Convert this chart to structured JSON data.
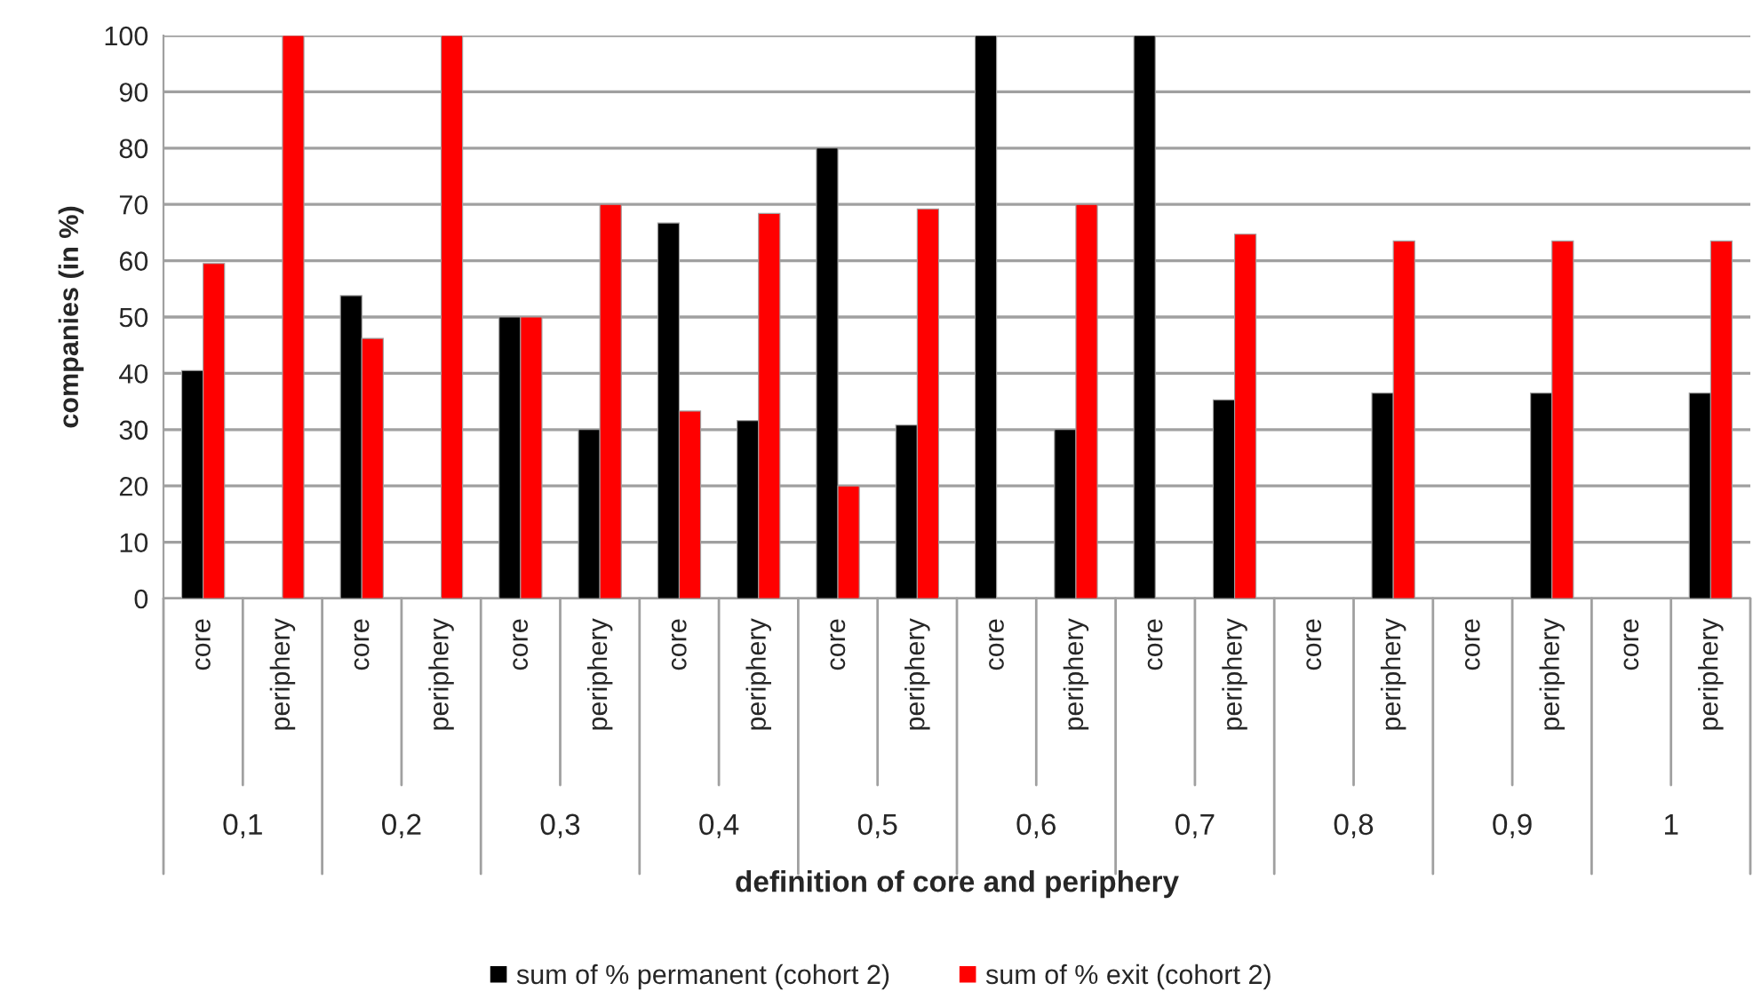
{
  "chart_data": {
    "type": "bar",
    "ylabel": "companies (in %)",
    "xlabel": "definition of core and periphery",
    "categories": [
      "core",
      "periphery",
      "core",
      "periphery",
      "core",
      "periphery",
      "core",
      "periphery",
      "core",
      "periphery",
      "core",
      "periphery",
      "core",
      "periphery",
      "core",
      "periphery",
      "core",
      "periphery",
      "core",
      "periphery"
    ],
    "annotations": [
      "0,1",
      "0,2",
      "0,3",
      "0,4",
      "0,5",
      "0,6",
      "0,7",
      "0,8",
      "0,9",
      "1"
    ],
    "series": [
      {
        "name": "sum of % permanent (cohort 2)",
        "color": "#000000",
        "values": [
          40.5,
          null,
          53.8,
          null,
          50,
          30,
          66.7,
          31.6,
          80,
          30.8,
          100,
          30,
          100,
          35.3,
          null,
          36.5,
          null,
          36.5,
          null,
          36.5
        ]
      },
      {
        "name": "sum of % exit (cohort 2)",
        "color": "#ff0000",
        "values": [
          59.5,
          100,
          46.2,
          100,
          50,
          70,
          33.3,
          68.4,
          20,
          69.2,
          null,
          70,
          null,
          64.7,
          null,
          63.5,
          null,
          63.5,
          null,
          63.5
        ]
      }
    ],
    "ylim": [
      0,
      100
    ],
    "yticks": [
      0,
      10,
      20,
      30,
      40,
      50,
      60,
      70,
      80,
      90,
      100
    ],
    "grid": "y",
    "legend": "bottom"
  }
}
